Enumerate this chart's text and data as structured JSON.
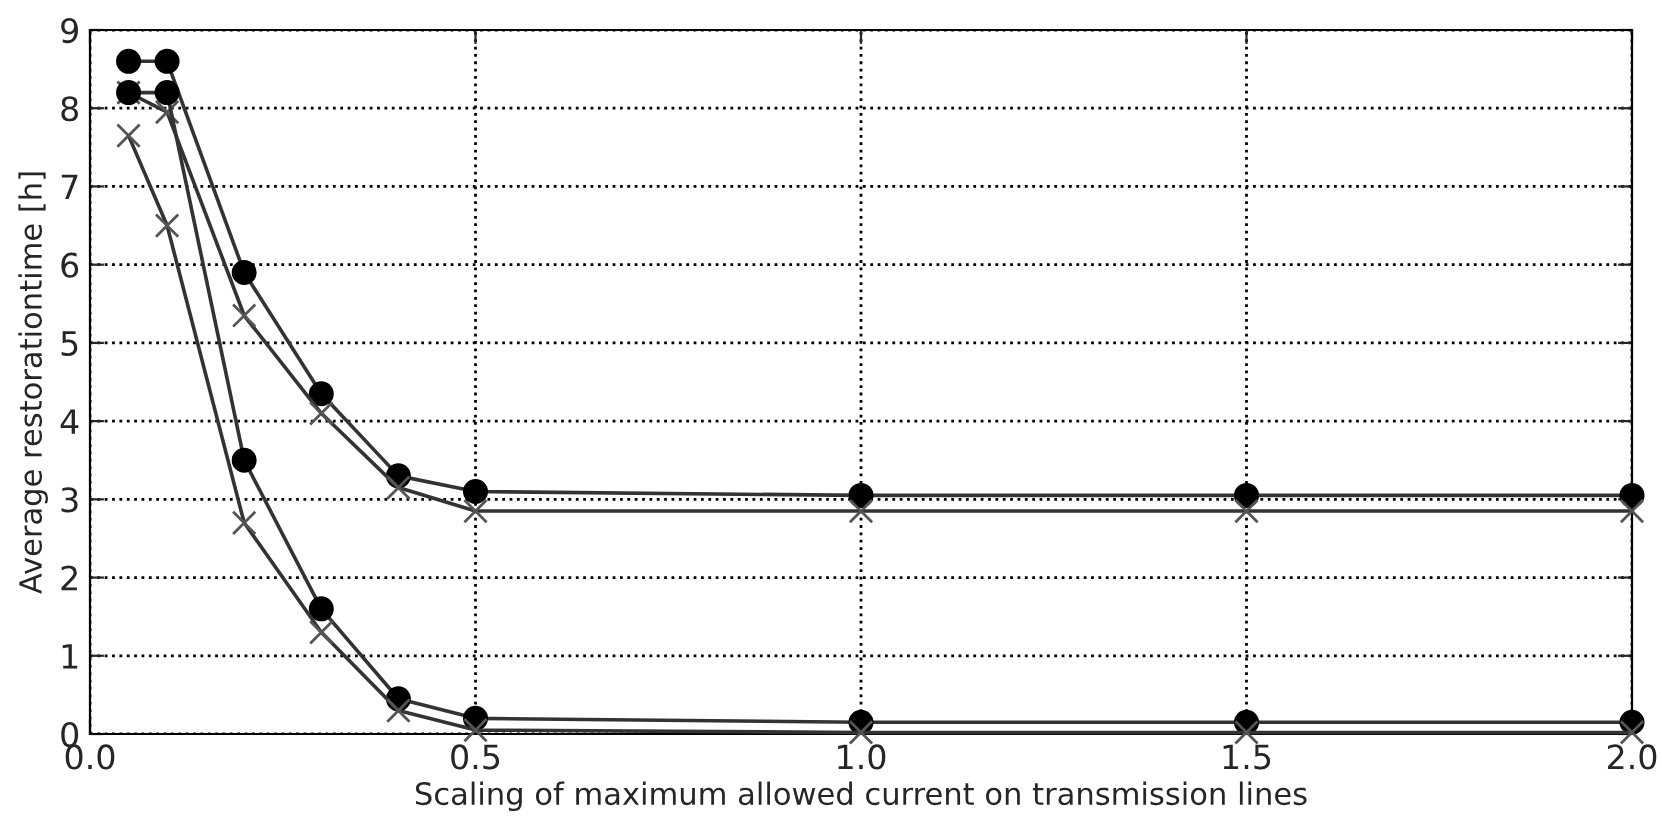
{
  "chart_data": {
    "type": "line",
    "xlabel": "Scaling of maximum allowed current on transmission lines",
    "ylabel": "Average restorationtime [h]",
    "xlim": [
      0.0,
      2.0
    ],
    "ylim": [
      0,
      9
    ],
    "xticks": [
      {
        "value": 0,
        "label": "0.0"
      },
      {
        "value": 0.5,
        "label": "0.5"
      },
      {
        "value": 1,
        "label": "1.0"
      },
      {
        "value": 1.5,
        "label": "1.5"
      },
      {
        "value": 2,
        "label": "2.0"
      }
    ],
    "yticks": [
      0,
      1,
      2,
      3,
      4,
      5,
      6,
      7,
      8,
      9
    ],
    "grid": true,
    "x": [
      0.05,
      0.1,
      0.2,
      0.3,
      0.4,
      0.5,
      1.0,
      1.5,
      2.0
    ],
    "series": [
      {
        "color": "#000000",
        "marker": "circle",
        "values": [
          8.6,
          8.6,
          5.9,
          4.35,
          3.3,
          3.1,
          3.05,
          3.05,
          3.05
        ]
      },
      {
        "color": "#555555",
        "marker": "cross",
        "values": [
          8.2,
          7.95,
          5.35,
          4.1,
          3.15,
          2.85,
          2.85,
          2.85,
          2.85
        ]
      },
      {
        "color": "#000000",
        "marker": "circle",
        "values": [
          8.2,
          8.2,
          3.5,
          1.6,
          0.45,
          0.2,
          0.15,
          0.15,
          0.15
        ]
      },
      {
        "color": "#555555",
        "marker": "cross",
        "values": [
          7.65,
          6.5,
          2.7,
          1.3,
          0.3,
          0.05,
          0.02,
          0.02,
          0.02
        ]
      }
    ]
  }
}
